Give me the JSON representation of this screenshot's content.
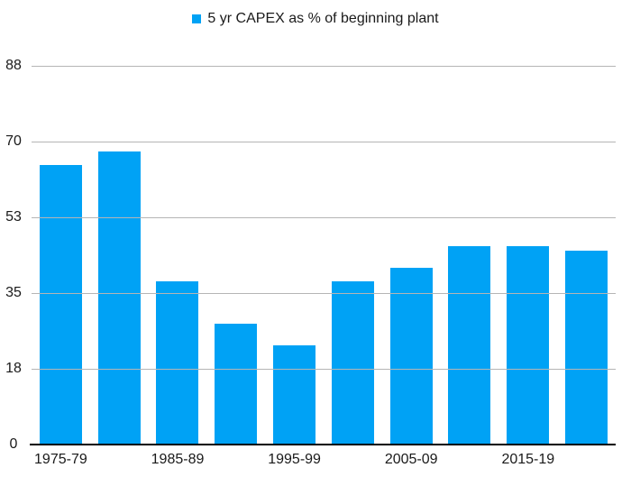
{
  "chart_data": {
    "type": "bar",
    "legend": "5 yr CAPEX as % of beginning plant",
    "legend_position": "top-center",
    "categories": [
      "1975-79",
      "",
      "1985-89",
      "",
      "1995-99",
      "",
      "2005-09",
      "",
      "2015-19",
      ""
    ],
    "values": [
      65,
      68,
      38,
      28,
      23,
      38,
      41,
      46,
      46,
      45
    ],
    "x_tick_labels_visible": [
      "1975-79",
      "1985-89",
      "1995-99",
      "2005-09",
      "2015-19"
    ],
    "y_tick_labels": [
      "88",
      "70",
      "53",
      "35",
      "18",
      "0"
    ],
    "ylim": [
      0,
      88
    ],
    "grid": true,
    "xlabel": "",
    "ylabel": "",
    "colors": {
      "bar": "#00A2F5",
      "gridline": "#b5b5b5",
      "axis_line": "#000000",
      "text": "#1a1a1a",
      "background": "#ffffff"
    }
  }
}
